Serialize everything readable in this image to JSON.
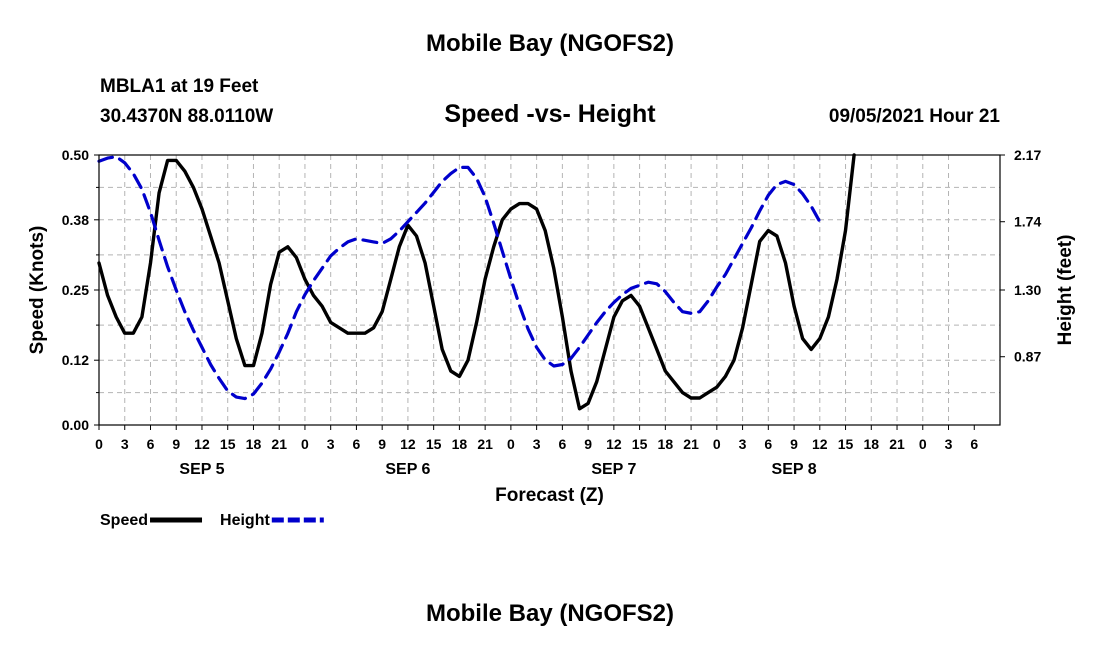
{
  "header": {
    "title": "Mobile Bay (NGOFS2)",
    "station": "MBLA1 at 19 Feet",
    "coords": "30.4370N  88.0110W",
    "plot_title": "Speed -vs- Height",
    "timestamp": "09/05/2021 Hour 21"
  },
  "footer": {
    "title": "Mobile Bay (NGOFS2)"
  },
  "chart_data": {
    "type": "line",
    "title": "Speed -vs- Height",
    "xlabel": "Forecast (Z)",
    "ylabel": "Speed (Knots)",
    "y2label": "Height (feet)",
    "x_hours_range": [
      0,
      105
    ],
    "ylim": [
      0,
      0.5
    ],
    "y2lim": [
      0.43,
      2.17
    ],
    "yticks": [
      "0.00",
      "0.12",
      "0.25",
      "0.38",
      "0.50"
    ],
    "y2ticks": [
      "0.87",
      "1.30",
      "1.74",
      "2.17"
    ],
    "xtick_labels": [
      "0",
      "3",
      "6",
      "9",
      "12",
      "15",
      "18",
      "21",
      "0",
      "3",
      "6",
      "9",
      "12",
      "15",
      "18",
      "21",
      "0",
      "3",
      "6",
      "9",
      "12",
      "15",
      "18",
      "21",
      "0",
      "3",
      "6",
      "9",
      "12",
      "15",
      "18",
      "21",
      "0",
      "3",
      "6"
    ],
    "day_labels": [
      {
        "label": "SEP 5",
        "hour": 12
      },
      {
        "label": "SEP 6",
        "hour": 36
      },
      {
        "label": "SEP 7",
        "hour": 60
      },
      {
        "label": "SEP 8",
        "hour": 81
      }
    ],
    "grid": true,
    "legend_position": "bottom-left",
    "series": [
      {
        "name": "Speed",
        "color": "#000000",
        "style": "solid",
        "axis": "left",
        "points": [
          [
            0,
            0.3
          ],
          [
            1,
            0.24
          ],
          [
            2,
            0.2
          ],
          [
            3,
            0.17
          ],
          [
            4,
            0.17
          ],
          [
            5,
            0.2
          ],
          [
            6,
            0.3
          ],
          [
            7,
            0.43
          ],
          [
            8,
            0.49
          ],
          [
            9,
            0.49
          ],
          [
            10,
            0.47
          ],
          [
            11,
            0.44
          ],
          [
            12,
            0.4
          ],
          [
            13,
            0.35
          ],
          [
            14,
            0.3
          ],
          [
            15,
            0.23
          ],
          [
            16,
            0.16
          ],
          [
            17,
            0.11
          ],
          [
            18,
            0.11
          ],
          [
            19,
            0.17
          ],
          [
            20,
            0.26
          ],
          [
            21,
            0.32
          ],
          [
            22,
            0.33
          ],
          [
            23,
            0.31
          ],
          [
            24,
            0.27
          ],
          [
            25,
            0.24
          ],
          [
            26,
            0.22
          ],
          [
            27,
            0.19
          ],
          [
            28,
            0.18
          ],
          [
            29,
            0.17
          ],
          [
            30,
            0.17
          ],
          [
            31,
            0.17
          ],
          [
            32,
            0.18
          ],
          [
            33,
            0.21
          ],
          [
            34,
            0.27
          ],
          [
            35,
            0.33
          ],
          [
            36,
            0.37
          ],
          [
            37,
            0.35
          ],
          [
            38,
            0.3
          ],
          [
            39,
            0.22
          ],
          [
            40,
            0.14
          ],
          [
            41,
            0.1
          ],
          [
            42,
            0.09
          ],
          [
            43,
            0.12
          ],
          [
            44,
            0.19
          ],
          [
            45,
            0.27
          ],
          [
            46,
            0.33
          ],
          [
            47,
            0.38
          ],
          [
            48,
            0.4
          ],
          [
            49,
            0.41
          ],
          [
            50,
            0.41
          ],
          [
            51,
            0.4
          ],
          [
            52,
            0.36
          ],
          [
            53,
            0.29
          ],
          [
            54,
            0.2
          ],
          [
            55,
            0.1
          ],
          [
            56,
            0.03
          ],
          [
            57,
            0.04
          ],
          [
            58,
            0.08
          ],
          [
            59,
            0.14
          ],
          [
            60,
            0.2
          ],
          [
            61,
            0.23
          ],
          [
            62,
            0.24
          ],
          [
            63,
            0.22
          ],
          [
            64,
            0.18
          ],
          [
            65,
            0.14
          ],
          [
            66,
            0.1
          ],
          [
            67,
            0.08
          ],
          [
            68,
            0.06
          ],
          [
            69,
            0.05
          ],
          [
            70,
            0.05
          ],
          [
            71,
            0.06
          ],
          [
            72,
            0.07
          ],
          [
            73,
            0.09
          ],
          [
            74,
            0.12
          ],
          [
            75,
            0.18
          ],
          [
            76,
            0.26
          ],
          [
            77,
            0.34
          ],
          [
            78,
            0.36
          ],
          [
            79,
            0.35
          ],
          [
            80,
            0.3
          ],
          [
            81,
            0.22
          ],
          [
            82,
            0.16
          ],
          [
            83,
            0.14
          ],
          [
            84,
            0.16
          ],
          [
            85,
            0.2
          ],
          [
            86,
            0.27
          ],
          [
            87,
            0.36
          ],
          [
            88,
            0.5
          ]
        ]
      },
      {
        "name": "Height",
        "color": "#0000cc",
        "style": "dashed",
        "axis": "right",
        "points": [
          [
            0,
            2.13
          ],
          [
            1,
            2.15
          ],
          [
            2,
            2.16
          ],
          [
            3,
            2.12
          ],
          [
            4,
            2.05
          ],
          [
            5,
            1.95
          ],
          [
            6,
            1.8
          ],
          [
            7,
            1.62
          ],
          [
            8,
            1.45
          ],
          [
            9,
            1.3
          ],
          [
            10,
            1.16
          ],
          [
            11,
            1.04
          ],
          [
            12,
            0.93
          ],
          [
            13,
            0.82
          ],
          [
            14,
            0.73
          ],
          [
            15,
            0.65
          ],
          [
            16,
            0.61
          ],
          [
            17,
            0.6
          ],
          [
            18,
            0.63
          ],
          [
            19,
            0.7
          ],
          [
            20,
            0.79
          ],
          [
            21,
            0.9
          ],
          [
            22,
            1.02
          ],
          [
            23,
            1.16
          ],
          [
            24,
            1.27
          ],
          [
            25,
            1.36
          ],
          [
            26,
            1.44
          ],
          [
            27,
            1.52
          ],
          [
            28,
            1.57
          ],
          [
            29,
            1.61
          ],
          [
            30,
            1.63
          ],
          [
            31,
            1.62
          ],
          [
            32,
            1.61
          ],
          [
            33,
            1.6
          ],
          [
            34,
            1.63
          ],
          [
            35,
            1.68
          ],
          [
            36,
            1.74
          ],
          [
            37,
            1.8
          ],
          [
            38,
            1.86
          ],
          [
            39,
            1.93
          ],
          [
            40,
            2.0
          ],
          [
            41,
            2.05
          ],
          [
            42,
            2.09
          ],
          [
            43,
            2.09
          ],
          [
            44,
            2.02
          ],
          [
            45,
            1.9
          ],
          [
            46,
            1.73
          ],
          [
            47,
            1.55
          ],
          [
            48,
            1.37
          ],
          [
            49,
            1.2
          ],
          [
            50,
            1.05
          ],
          [
            51,
            0.93
          ],
          [
            52,
            0.85
          ],
          [
            53,
            0.81
          ],
          [
            54,
            0.82
          ],
          [
            55,
            0.86
          ],
          [
            56,
            0.93
          ],
          [
            57,
            1.01
          ],
          [
            58,
            1.09
          ],
          [
            59,
            1.16
          ],
          [
            60,
            1.22
          ],
          [
            61,
            1.27
          ],
          [
            62,
            1.31
          ],
          [
            63,
            1.33
          ],
          [
            64,
            1.35
          ],
          [
            65,
            1.34
          ],
          [
            66,
            1.29
          ],
          [
            67,
            1.22
          ],
          [
            68,
            1.16
          ],
          [
            69,
            1.15
          ],
          [
            70,
            1.16
          ],
          [
            71,
            1.23
          ],
          [
            72,
            1.32
          ],
          [
            73,
            1.4
          ],
          [
            74,
            1.5
          ],
          [
            75,
            1.6
          ],
          [
            76,
            1.7
          ],
          [
            77,
            1.81
          ],
          [
            78,
            1.91
          ],
          [
            79,
            1.98
          ],
          [
            80,
            2.0
          ],
          [
            81,
            1.98
          ],
          [
            82,
            1.92
          ],
          [
            83,
            1.84
          ],
          [
            84,
            1.74
          ]
        ]
      }
    ]
  },
  "legend": {
    "items": [
      {
        "label": "Speed",
        "color": "#000000",
        "style": "solid"
      },
      {
        "label": "Height",
        "color": "#0000cc",
        "style": "dashed"
      }
    ]
  }
}
